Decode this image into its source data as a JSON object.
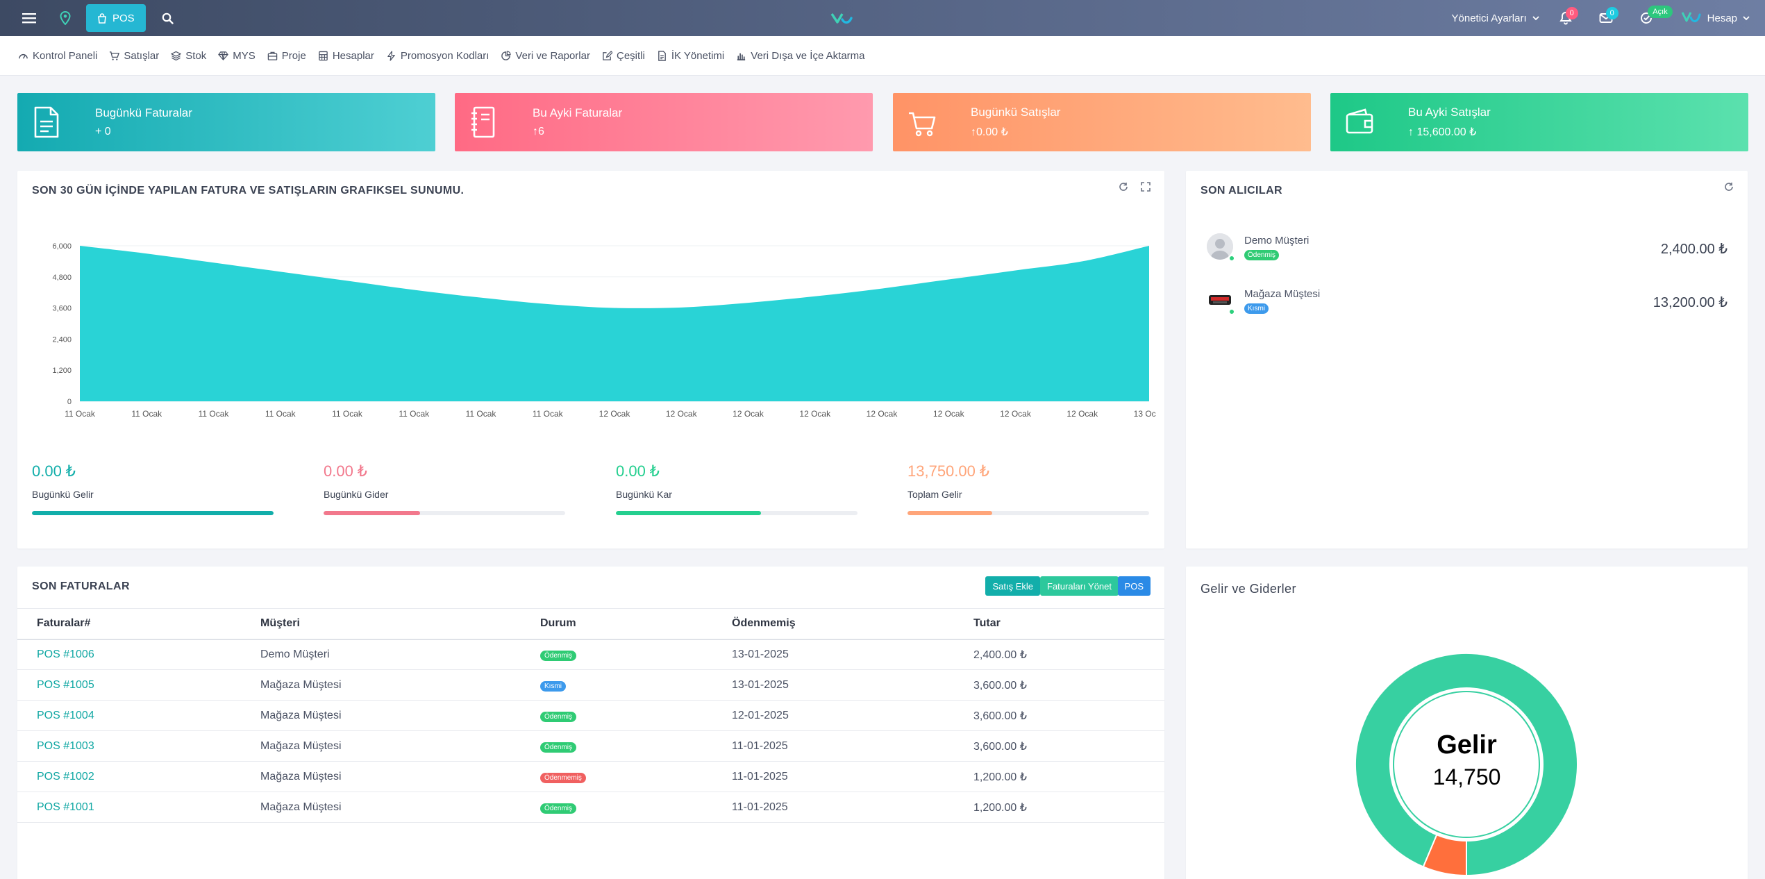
{
  "topbar": {
    "pos_label": "POS",
    "admin_settings": "Yönetici Ayarları",
    "notifications_count": "0",
    "messages_count": "0",
    "status_label": "Açık",
    "account_label": "Hesap"
  },
  "nav": [
    {
      "label": "Kontrol Paneli",
      "icon": "dashboard-icon"
    },
    {
      "label": "Satışlar",
      "icon": "cart-icon"
    },
    {
      "label": "Stok",
      "icon": "layers-icon"
    },
    {
      "label": "MYS",
      "icon": "diamond-icon"
    },
    {
      "label": "Proje",
      "icon": "briefcase-icon"
    },
    {
      "label": "Hesaplar",
      "icon": "calculator-icon"
    },
    {
      "label": "Promosyon Kodları",
      "icon": "bolt-icon"
    },
    {
      "label": "Veri ve Raporlar",
      "icon": "pie-icon"
    },
    {
      "label": "Çeşitli",
      "icon": "edit-icon"
    },
    {
      "label": "İK Yönetimi",
      "icon": "document-icon"
    },
    {
      "label": "Veri Dışa ve İçe Aktarma",
      "icon": "bar-chart-icon"
    }
  ],
  "stats": [
    {
      "title": "Bugünkü Faturalar",
      "value": "+ 0",
      "icon": "document-icon"
    },
    {
      "title": "Bu Ayki Faturalar",
      "value": "↑6",
      "icon": "notebook-icon"
    },
    {
      "title": "Bugünkü Satışlar",
      "value": "↑0.00 ₺",
      "icon": "basket-icon"
    },
    {
      "title": "Bu Ayki Satışlar",
      "value": "↑ 15,600.00 ₺",
      "icon": "wallet-icon"
    }
  ],
  "chart_panel": {
    "title": "SON 30 GÜN İÇİNDE YAPILAN FATURA VE SATIŞLARIN GRAFIKSEL SUNUMU."
  },
  "chart_data": {
    "type": "area",
    "title": "SON 30 GÜN İÇİNDE YAPILAN FATURA VE SATIŞLARIN GRAFIKSEL SUNUMU.",
    "xlabel": "",
    "ylabel": "",
    "x": [
      "11 Ocak",
      "11 Ocak",
      "11 Ocak",
      "11 Ocak",
      "11 Ocak",
      "11 Ocak",
      "11 Ocak",
      "11 Ocak",
      "12 Ocak",
      "12 Ocak",
      "12 Ocak",
      "12 Ocak",
      "12 Ocak",
      "12 Ocak",
      "12 Ocak",
      "12 Ocak",
      "13 Ocak"
    ],
    "y": [
      6000,
      5700,
      5350,
      5000,
      4650,
      4300,
      4000,
      3750,
      3600,
      3620,
      3800,
      4050,
      4350,
      4700,
      5050,
      5400,
      6000
    ],
    "yticks": [
      0,
      1200,
      2400,
      3600,
      4800,
      6000
    ],
    "ytick_labels": [
      "0",
      "1,200",
      "2,400",
      "3,600",
      "4,800",
      "6,000"
    ],
    "ylim": [
      0,
      6000
    ],
    "grid": true,
    "color": "#29d3d6"
  },
  "kpis": [
    {
      "value": "0.00 ₺",
      "label": "Bugünkü Gelir",
      "color": "#12aeaa",
      "progress": 1.0
    },
    {
      "value": "0.00 ₺",
      "label": "Bugünkü Gider",
      "color": "#f2788c",
      "progress": 0.4
    },
    {
      "value": "0.00 ₺",
      "label": "Bugünkü Kar",
      "color": "#24cf8f",
      "progress": 0.6
    },
    {
      "value": "13,750.00 ₺",
      "label": "Toplam Gelir",
      "color": "#ffa57a",
      "progress": 0.35
    }
  ],
  "buyers_panel": {
    "title": "SON ALICILAR",
    "buyers": [
      {
        "name": "Demo Müşteri",
        "status": "Ödenmiş",
        "status_color": "#2fcb74",
        "amount": "2,400.00 ₺"
      },
      {
        "name": "Mağaza Müştesi",
        "status": "Kısmi",
        "status_color": "#3d9aec",
        "amount": "13,200.00 ₺"
      }
    ]
  },
  "invoices_panel": {
    "title": "SON FATURALAR",
    "buttons": {
      "add_sale": "Satış Ekle",
      "manage_invoices": "Faturaları Yönet",
      "pos": "POS"
    },
    "columns": [
      "Faturalar#",
      "Müşteri",
      "Durum",
      "Ödenmemiş",
      "Tutar"
    ],
    "rows": [
      {
        "id": "POS #1006",
        "customer": "Demo Müşteri",
        "status": "Ödenmiş",
        "status_type": "green",
        "date": "13-01-2025",
        "amount": "2,400.00 ₺"
      },
      {
        "id": "POS #1005",
        "customer": "Mağaza Müştesi",
        "status": "Kısmi",
        "status_type": "blue",
        "date": "13-01-2025",
        "amount": "3,600.00 ₺"
      },
      {
        "id": "POS #1004",
        "customer": "Mağaza Müştesi",
        "status": "Ödenmiş",
        "status_type": "green",
        "date": "12-01-2025",
        "amount": "3,600.00 ₺"
      },
      {
        "id": "POS #1003",
        "customer": "Mağaza Müştesi",
        "status": "Ödenmiş",
        "status_type": "green",
        "date": "11-01-2025",
        "amount": "3,600.00 ₺"
      },
      {
        "id": "POS #1002",
        "customer": "Mağaza Müştesi",
        "status": "Ödenmemiş",
        "status_type": "red",
        "date": "11-01-2025",
        "amount": "1,200.00 ₺"
      },
      {
        "id": "POS #1001",
        "customer": "Mağaza Müştesi",
        "status": "Ödenmiş",
        "status_type": "green",
        "date": "11-01-2025",
        "amount": "1,200.00 ₺"
      }
    ]
  },
  "income_panel": {
    "title": "Gelir ve Giderler",
    "center_label": "Gelir",
    "center_value": "14,750",
    "segments": [
      {
        "value": 14750,
        "color": "#37d0a1"
      },
      {
        "value": 1000,
        "color": "#ff6f3c"
      }
    ]
  }
}
